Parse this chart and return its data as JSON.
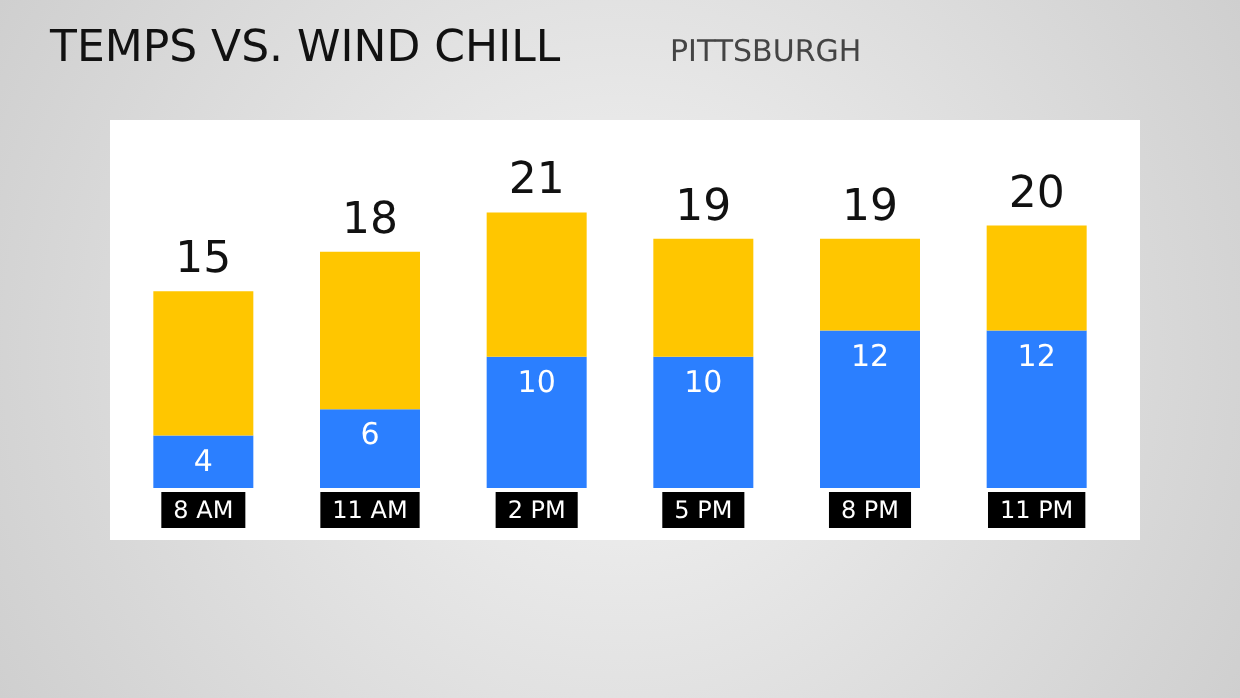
{
  "chart_data": {
    "type": "bar",
    "title": "TEMPS VS. WIND CHILL",
    "subtitle": "PITTSBURGH",
    "stacked": true,
    "categories": [
      "8 AM",
      "11 AM",
      "2 PM",
      "5 PM",
      "8 PM",
      "11 PM"
    ],
    "series": [
      {
        "color": "#2b7fff",
        "values": [
          4,
          6,
          10,
          10,
          12,
          12
        ],
        "value_labels": [
          "4",
          "6",
          "10",
          "10",
          "12",
          "12"
        ]
      },
      {
        "color": "#ffc600",
        "values": [
          11,
          12,
          11,
          9,
          7,
          8
        ]
      }
    ],
    "totals": [
      "15",
      "18",
      "21",
      "19",
      "19",
      "20"
    ]
  }
}
